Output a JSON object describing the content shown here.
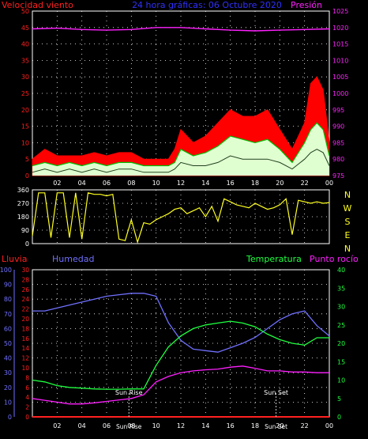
{
  "header": {
    "left_label": "Velocidad viento",
    "title": "24 hora gráficas: 06 Octubre 2020",
    "right_label": "Presión"
  },
  "colors": {
    "wind_label": "#ff2020",
    "wind_gust": "#ff0000",
    "wind_avg": "#00c000",
    "wind_fill": "#e0ffd0",
    "pressure": "#ff20ff",
    "title": "#3030ff",
    "direction": "#ffff20",
    "rain": "#ff2020",
    "humidity": "#7070ff",
    "temperature": "#20ff40",
    "dewpoint": "#ff20ff",
    "axis_right": "#d0d0d0",
    "grid": "#ffffff"
  },
  "chart_data": [
    {
      "type": "line",
      "title": "24 hora gráficas: 06 Octubre 2020",
      "ylabel_left": "Velocidad viento",
      "ylabel_right": "Presión",
      "x_ticks": [
        "02",
        "04",
        "06",
        "08",
        "10",
        "12",
        "14",
        "16",
        "18",
        "20",
        "22",
        "00"
      ],
      "xlim": [
        0,
        24
      ],
      "ylim_left": [
        0,
        50
      ],
      "yticks_left": [
        0,
        5,
        10,
        15,
        20,
        25,
        30,
        35,
        40,
        45,
        50
      ],
      "ylim_right": [
        975,
        1025
      ],
      "yticks_right": [
        975,
        980,
        985,
        990,
        995,
        1000,
        1005,
        1010,
        1015,
        1020,
        1025
      ],
      "grid": true,
      "series": [
        {
          "name": "Presión",
          "axis": "right",
          "x": [
            0,
            2,
            4,
            6,
            8,
            10,
            12,
            14,
            16,
            18,
            20,
            22,
            24
          ],
          "values": [
            1019.6,
            1019.8,
            1019.4,
            1019.2,
            1019.4,
            1020.0,
            1020.0,
            1019.6,
            1019.2,
            1019.0,
            1019.2,
            1019.4,
            1019.6
          ]
        },
        {
          "name": "gust",
          "axis": "left",
          "x": [
            0,
            1,
            2,
            3,
            4,
            5,
            6,
            7,
            8,
            9,
            10,
            11,
            11.5,
            12,
            13,
            14,
            15,
            16,
            17,
            18,
            19,
            20,
            21,
            22,
            22.5,
            23,
            23.5,
            24
          ],
          "values": [
            5,
            8,
            6,
            6,
            6,
            7,
            6,
            7,
            7,
            5,
            5,
            5,
            8,
            14,
            10,
            12,
            16,
            20,
            18,
            18,
            20,
            14,
            8,
            16,
            28,
            30,
            26,
            10
          ]
        },
        {
          "name": "avg",
          "axis": "left",
          "x": [
            0,
            1,
            2,
            3,
            4,
            5,
            6,
            7,
            8,
            9,
            10,
            11,
            11.5,
            12,
            13,
            14,
            15,
            16,
            17,
            18,
            19,
            20,
            21,
            22,
            22.5,
            23,
            23.5,
            24
          ],
          "values": [
            3,
            4,
            3,
            4,
            3,
            4,
            3,
            4,
            4,
            3,
            3,
            3,
            4,
            8,
            6,
            7,
            9,
            12,
            11,
            10,
            11,
            8,
            4,
            10,
            14,
            16,
            14,
            6
          ]
        },
        {
          "name": "min",
          "axis": "left",
          "x": [
            0,
            1,
            2,
            3,
            4,
            5,
            6,
            7,
            8,
            9,
            10,
            11,
            11.5,
            12,
            13,
            14,
            15,
            16,
            17,
            18,
            19,
            20,
            21,
            22,
            22.5,
            23,
            23.5,
            24
          ],
          "values": [
            1,
            2,
            1,
            2,
            1,
            2,
            1,
            2,
            2,
            1,
            1,
            1,
            2,
            4,
            3,
            3,
            4,
            6,
            5,
            5,
            5,
            4,
            2,
            5,
            7,
            8,
            7,
            3
          ]
        }
      ]
    },
    {
      "type": "line",
      "ylabel_right": "N W S E N",
      "right_labels": [
        "N",
        "W",
        "S",
        "E",
        "N"
      ],
      "x_ticks": [
        "02",
        "04",
        "06",
        "08",
        "10",
        "12",
        "14",
        "16",
        "18",
        "20",
        "22",
        "00"
      ],
      "xlim": [
        0,
        24
      ],
      "ylim": [
        0,
        360
      ],
      "yticks": [
        0,
        90,
        180,
        270,
        360
      ],
      "grid": true,
      "series": [
        {
          "name": "direction",
          "x": [
            0,
            0.5,
            1,
            1.5,
            2,
            2.5,
            3,
            3.5,
            4,
            4.5,
            5,
            5.5,
            6,
            6.5,
            7,
            7.5,
            8,
            8.5,
            9,
            9.5,
            10,
            10.5,
            11,
            11.5,
            12,
            12.5,
            13,
            13.5,
            14,
            14.5,
            15,
            15.5,
            16,
            16.5,
            17,
            17.5,
            18,
            18.5,
            19,
            19.5,
            20,
            20.5,
            21,
            21.5,
            22,
            22.5,
            23,
            23.5,
            24
          ],
          "values": [
            50,
            340,
            340,
            40,
            340,
            340,
            40,
            340,
            30,
            340,
            330,
            330,
            320,
            330,
            30,
            20,
            160,
            10,
            140,
            130,
            160,
            180,
            200,
            230,
            240,
            200,
            220,
            240,
            180,
            250,
            150,
            300,
            280,
            260,
            250,
            240,
            270,
            250,
            230,
            240,
            260,
            300,
            60,
            290,
            280,
            270,
            280,
            270,
            275
          ]
        }
      ]
    },
    {
      "type": "line",
      "ylabels": [
        "Lluvia",
        "Humedad",
        "Temperatura",
        "Punto rocío"
      ],
      "x_ticks": [
        "02",
        "04",
        "06",
        "08",
        "10",
        "12",
        "14",
        "16",
        "18",
        "20",
        "22",
        "00"
      ],
      "xlim": [
        0,
        24
      ],
      "ylim_humidity": [
        0,
        100
      ],
      "yticks_humidity": [
        0,
        10,
        20,
        30,
        40,
        50,
        60,
        70,
        80,
        90,
        100
      ],
      "ylim_rain": [
        0,
        30
      ],
      "yticks_rain": [
        0,
        2,
        4,
        6,
        8,
        10,
        12,
        14,
        16,
        18,
        20,
        22,
        24,
        26,
        28,
        30
      ],
      "ylim_temperature": [
        0,
        40
      ],
      "yticks_temperature": [
        0,
        5,
        10,
        15,
        20,
        25,
        30,
        35,
        40
      ],
      "grid": true,
      "annotations": [
        {
          "text": "Sun Rise",
          "x": 7.8,
          "label_y": 2.2,
          "axis_label": "Sun Rise"
        },
        {
          "text": "Sun Set",
          "x": 19.7,
          "label_y": 2.2,
          "axis_label": "Sun Set"
        }
      ],
      "series": [
        {
          "name": "Lluvia",
          "axis": "rain",
          "x": [
            0,
            24
          ],
          "values": [
            0,
            0
          ]
        },
        {
          "name": "Humedad",
          "axis": "humidity",
          "x": [
            0,
            1,
            2,
            3,
            4,
            5,
            6,
            7,
            8,
            9,
            10,
            11,
            12,
            13,
            14,
            15,
            16,
            17,
            18,
            19,
            20,
            21,
            22,
            23,
            24
          ],
          "values": [
            72,
            72,
            74,
            76,
            78,
            80,
            82,
            83,
            84,
            84,
            82,
            64,
            52,
            46,
            45,
            44,
            47,
            50,
            54,
            60,
            66,
            70,
            72,
            62,
            55
          ]
        },
        {
          "name": "Temperatura",
          "axis": "temperature",
          "x": [
            0,
            1,
            2,
            3,
            4,
            5,
            6,
            7,
            8,
            9,
            10,
            11,
            12,
            13,
            14,
            15,
            16,
            17,
            18,
            19,
            20,
            21,
            22,
            23,
            24
          ],
          "values": [
            10,
            9.5,
            8.5,
            8,
            7.8,
            7.6,
            7.5,
            7.5,
            7.6,
            7.6,
            14,
            19,
            22,
            24,
            25,
            25.5,
            26,
            25.5,
            24.5,
            22.5,
            21,
            20,
            19.5,
            21.5,
            21.5
          ]
        },
        {
          "name": "Punto rocío",
          "axis": "temperature",
          "x": [
            0,
            1,
            2,
            3,
            4,
            5,
            6,
            7,
            8,
            9,
            10,
            11,
            12,
            13,
            14,
            15,
            16,
            17,
            18,
            19,
            20,
            21,
            22,
            23,
            24
          ],
          "values": [
            5,
            4.5,
            4,
            3.5,
            3.5,
            3.8,
            4.2,
            4.6,
            5,
            6,
            9.5,
            11,
            12,
            12.5,
            12.8,
            13,
            13.5,
            13.8,
            13.2,
            12.5,
            12.5,
            12.2,
            12.2,
            12,
            12
          ]
        }
      ]
    }
  ]
}
